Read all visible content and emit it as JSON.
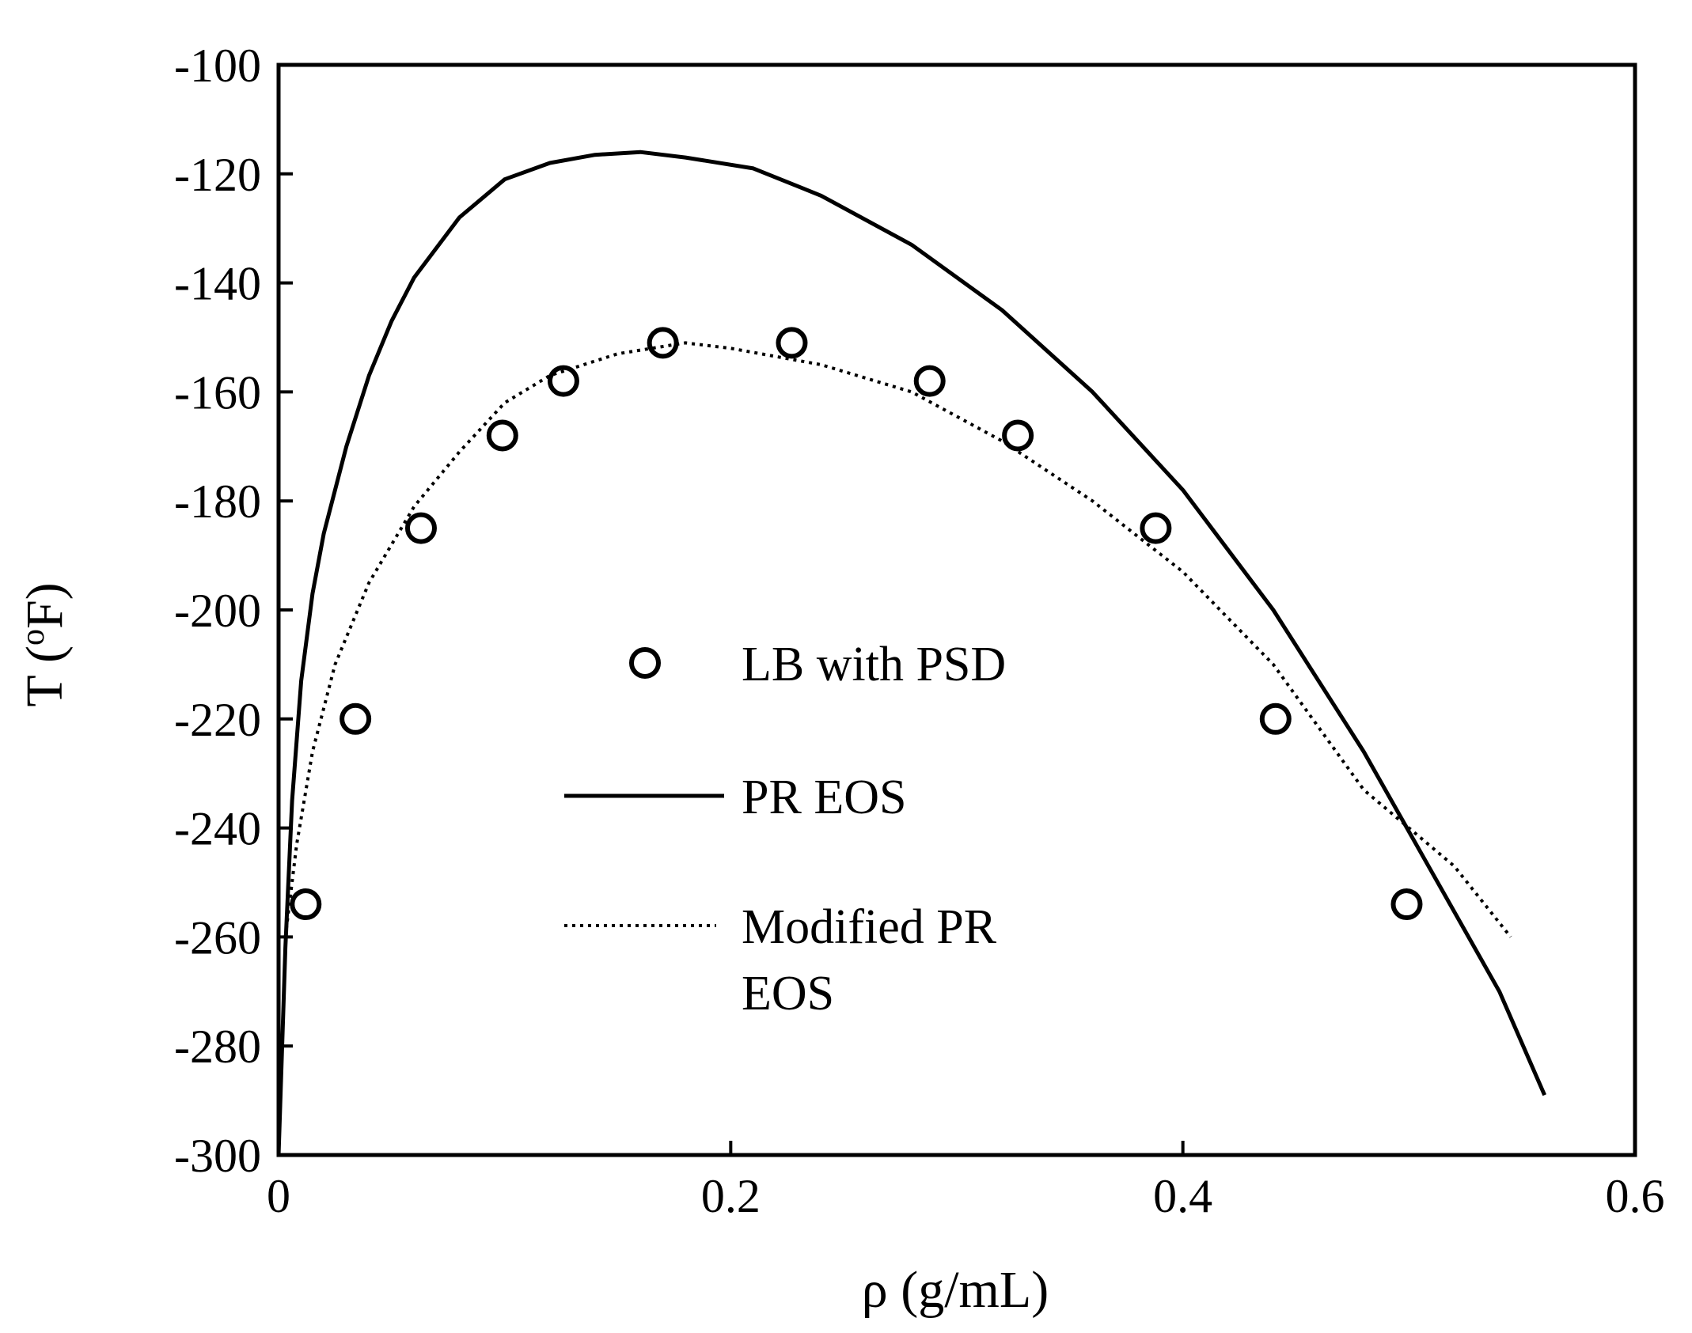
{
  "chart_data": {
    "type": "scatter",
    "title": "",
    "xlabel": "ρ (g/mL)",
    "ylabel_main": "T (",
    "ylabel_sup": "o",
    "ylabel_end": "F)",
    "xlim": [
      0,
      0.6
    ],
    "ylim": [
      -300,
      -100
    ],
    "x_ticks": [
      0,
      0.2,
      0.4,
      0.6
    ],
    "x_tick_labels": [
      "0",
      "0.2",
      "0.4",
      "0.6"
    ],
    "y_ticks": [
      -100,
      -120,
      -140,
      -160,
      -180,
      -200,
      -220,
      -240,
      -260,
      -280,
      -300
    ],
    "y_tick_labels": [
      "-100",
      "-120",
      "-140",
      "-160",
      "-180",
      "-200",
      "-220",
      "-240",
      "-260",
      "-280",
      "-300"
    ],
    "grid": false,
    "legend_position": "center",
    "series": [
      {
        "name": "LB with PSD",
        "kind": "markers",
        "marker": "open-circle",
        "x": [
          0.012,
          0.034,
          0.063,
          0.099,
          0.126,
          0.17,
          0.227,
          0.288,
          0.327,
          0.388,
          0.441,
          0.499
        ],
        "y": [
          -254,
          -220,
          -185,
          -168,
          -158,
          -151,
          -151,
          -158,
          -168,
          -185,
          -220,
          -254
        ]
      },
      {
        "name": "PR EOS",
        "kind": "line",
        "style": "solid",
        "x": [
          0.0,
          0.003,
          0.006,
          0.01,
          0.015,
          0.02,
          0.03,
          0.04,
          0.05,
          0.06,
          0.08,
          0.1,
          0.12,
          0.14,
          0.16,
          0.18,
          0.21,
          0.24,
          0.28,
          0.32,
          0.36,
          0.4,
          0.44,
          0.48,
          0.51,
          0.54,
          0.56
        ],
        "y": [
          -300,
          -262,
          -235,
          -213,
          -197,
          -186,
          -170,
          -157,
          -147,
          -139,
          -128,
          -121,
          -118,
          -116.5,
          -116,
          -117,
          -119,
          -124,
          -133,
          -145,
          -160,
          -178,
          -200,
          -226,
          -248,
          -270,
          -289
        ]
      },
      {
        "name": "Modified PR EOS",
        "legend_label": [
          "Modified PR",
          "EOS"
        ],
        "kind": "line",
        "style": "dotted",
        "x": [
          0.003,
          0.008,
          0.015,
          0.025,
          0.04,
          0.06,
          0.08,
          0.1,
          0.12,
          0.15,
          0.18,
          0.2,
          0.24,
          0.28,
          0.32,
          0.36,
          0.4,
          0.44,
          0.48,
          0.52,
          0.545
        ],
        "y": [
          -260,
          -243,
          -226,
          -210,
          -195,
          -181,
          -171,
          -162,
          -157,
          -153,
          -151,
          -152,
          -155,
          -160,
          -169,
          -180,
          -193,
          -210,
          -233,
          -247,
          -260
        ]
      }
    ]
  }
}
